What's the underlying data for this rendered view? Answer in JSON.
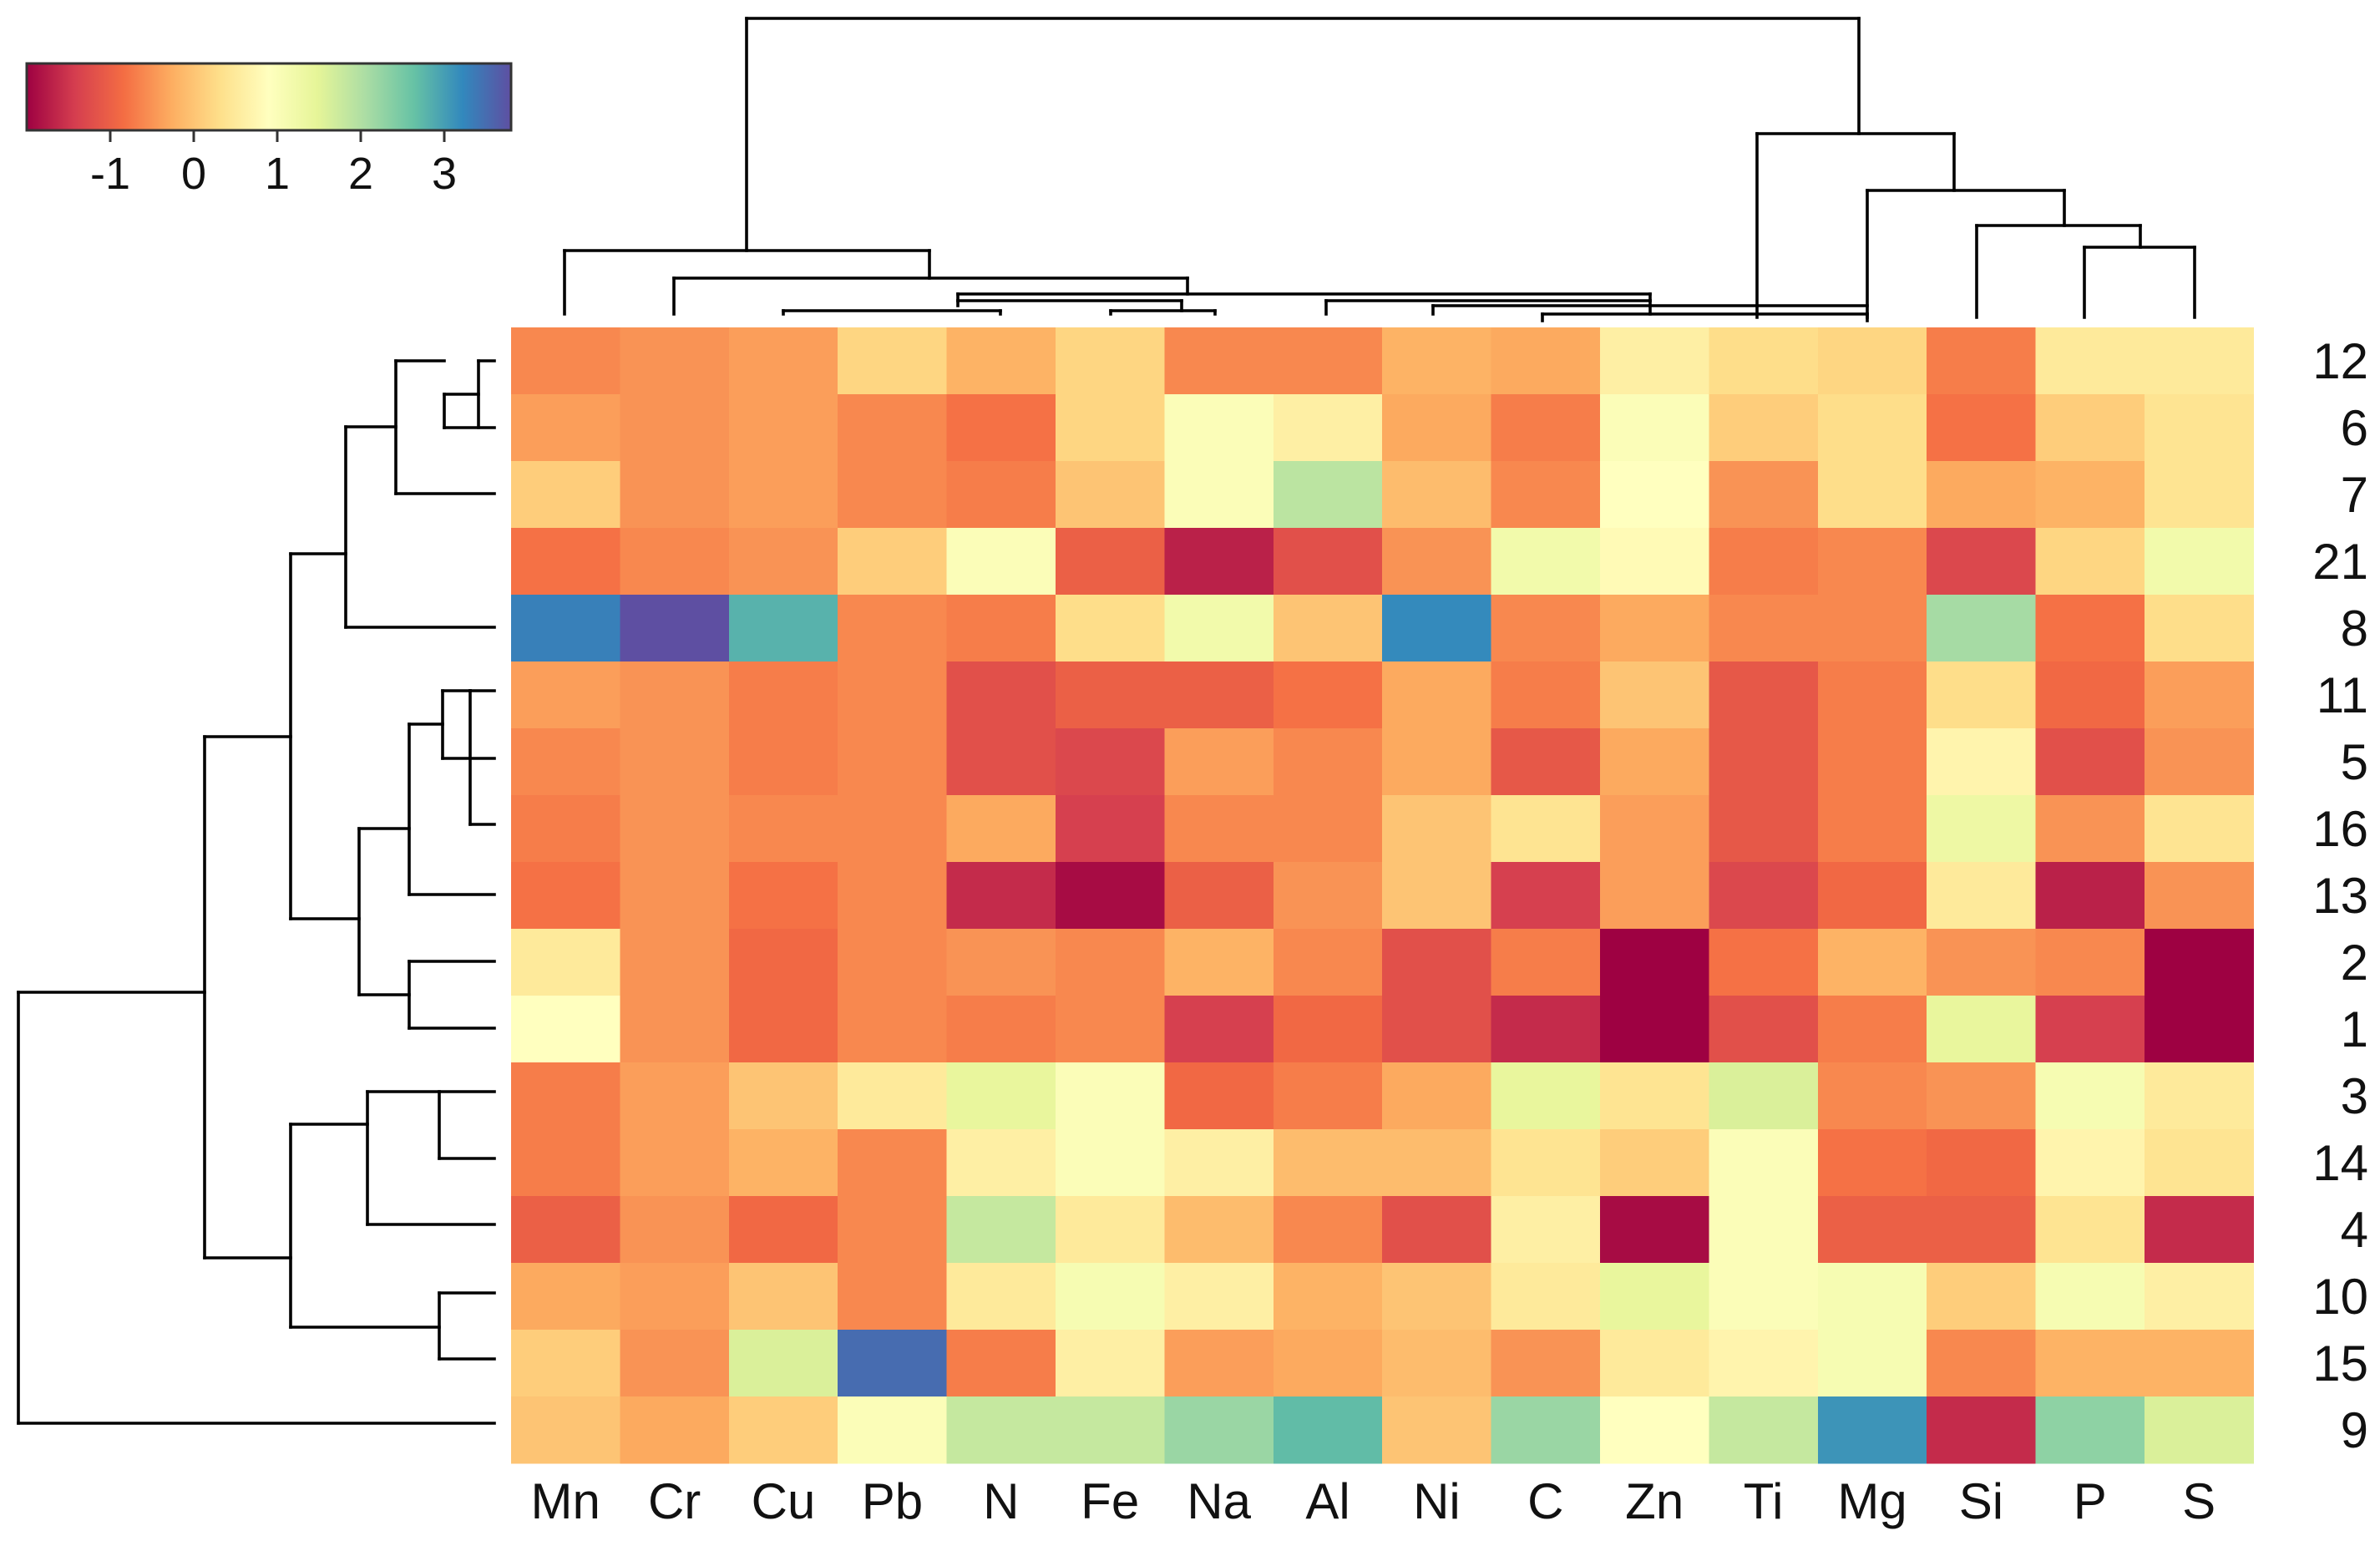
{
  "chart_data": {
    "type": "heatmap",
    "title": "",
    "columns": [
      "Mn",
      "Cr",
      "Cu",
      "Pb",
      "N",
      "Fe",
      "Na",
      "Al",
      "Ni",
      "C",
      "Zn",
      "Ti",
      "Mg",
      "Si",
      "P",
      "S"
    ],
    "rows": [
      "12",
      "6",
      "7",
      "21",
      "8",
      "11",
      "5",
      "16",
      "13",
      "2",
      "1",
      "3",
      "14",
      "4",
      "10",
      "15",
      "9"
    ],
    "values": [
      [
        -0.6,
        -0.5,
        -0.4,
        0.2,
        -0.2,
        0.2,
        -0.6,
        -0.6,
        -0.2,
        -0.3,
        0.6,
        0.3,
        0.2,
        -0.7,
        0.5,
        0.5
      ],
      [
        -0.4,
        -0.5,
        -0.4,
        -0.6,
        -0.8,
        0.2,
        1.0,
        0.6,
        -0.3,
        -0.7,
        1.0,
        0.1,
        0.3,
        -0.8,
        0.1,
        0.4
      ],
      [
        0.1,
        -0.5,
        -0.4,
        -0.6,
        -0.7,
        0.0,
        1.0,
        1.9,
        -0.1,
        -0.6,
        0.9,
        -0.5,
        0.3,
        -0.3,
        -0.2,
        0.4
      ],
      [
        -0.8,
        -0.6,
        -0.5,
        0.1,
        1.0,
        -1.0,
        -1.7,
        -1.2,
        -0.5,
        1.2,
        0.8,
        -0.7,
        -0.6,
        -1.3,
        0.2,
        1.2
      ],
      [
        3.3,
        3.8,
        2.8,
        -0.6,
        -0.7,
        0.3,
        1.2,
        0.0,
        3.2,
        -0.6,
        -0.3,
        -0.6,
        -0.6,
        2.1,
        -0.8,
        0.3
      ],
      [
        -0.4,
        -0.5,
        -0.7,
        -0.6,
        -1.2,
        -1.0,
        -1.0,
        -0.8,
        -0.3,
        -0.7,
        0.0,
        -1.1,
        -0.7,
        0.3,
        -0.9,
        -0.4
      ],
      [
        -0.6,
        -0.5,
        -0.7,
        -0.6,
        -1.2,
        -1.3,
        -0.4,
        -0.6,
        -0.3,
        -1.1,
        -0.3,
        -1.1,
        -0.7,
        0.7,
        -1.2,
        -0.5
      ],
      [
        -0.7,
        -0.5,
        -0.6,
        -0.6,
        -0.3,
        -1.4,
        -0.6,
        -0.6,
        0.0,
        0.4,
        -0.4,
        -1.1,
        -0.7,
        1.3,
        -0.5,
        0.4
      ],
      [
        -0.8,
        -0.5,
        -0.8,
        -0.6,
        -1.6,
        -1.9,
        -1.0,
        -0.5,
        0.0,
        -1.4,
        -0.4,
        -1.3,
        -0.9,
        0.5,
        -1.7,
        -0.5
      ],
      [
        0.5,
        -0.5,
        -0.9,
        -0.6,
        -0.5,
        -0.6,
        -0.2,
        -0.6,
        -1.2,
        -0.7,
        -2.2,
        -0.8,
        -0.2,
        -0.5,
        -0.6,
        -2.2
      ],
      [
        0.9,
        -0.5,
        -0.9,
        -0.6,
        -0.7,
        -0.6,
        -1.4,
        -0.9,
        -1.2,
        -1.6,
        -2.2,
        -1.2,
        -0.7,
        1.4,
        -1.4,
        -2.2
      ],
      [
        -0.7,
        -0.4,
        0.0,
        0.5,
        1.4,
        1.0,
        -0.9,
        -0.7,
        -0.3,
        1.4,
        0.4,
        1.6,
        -0.6,
        -0.5,
        1.1,
        0.5
      ],
      [
        -0.7,
        -0.4,
        -0.2,
        -0.6,
        0.6,
        1.0,
        0.6,
        -0.1,
        -0.1,
        0.4,
        0.1,
        1.0,
        -0.8,
        -0.9,
        0.7,
        0.4
      ],
      [
        -1.0,
        -0.5,
        -0.9,
        -0.6,
        1.8,
        0.5,
        -0.1,
        -0.6,
        -1.2,
        0.6,
        -1.9,
        1.0,
        -1.0,
        -1.0,
        0.4,
        -1.6
      ],
      [
        -0.3,
        -0.4,
        0.0,
        -0.6,
        0.5,
        1.1,
        0.6,
        -0.2,
        0.0,
        0.5,
        1.4,
        1.0,
        1.1,
        0.1,
        1.1,
        0.6
      ],
      [
        0.1,
        -0.5,
        1.6,
        3.5,
        -0.7,
        0.6,
        -0.4,
        -0.3,
        -0.1,
        -0.5,
        0.5,
        0.7,
        1.1,
        -0.6,
        -0.2,
        -0.2
      ],
      [
        0.0,
        -0.3,
        0.1,
        1.0,
        1.8,
        1.8,
        2.2,
        2.7,
        0.0,
        2.2,
        0.9,
        1.8,
        3.1,
        -1.6,
        2.3,
        1.6
      ]
    ],
    "colorbar": {
      "min": -2.0,
      "max": 3.8,
      "ticks": [
        -1,
        0,
        1,
        2,
        3
      ],
      "tick_labels": [
        "-1",
        "0",
        "1",
        "2",
        "3"
      ],
      "placement": "top-left",
      "palette": [
        "#9e0142",
        "#d53e4f",
        "#f46d43",
        "#fdae61",
        "#fee08b",
        "#ffffbf",
        "#e6f598",
        "#abdda4",
        "#66c2a5",
        "#3288bd",
        "#5e4fa2"
      ]
    },
    "column_order_note": "columns clustered by dendrogram on top",
    "row_order_note": "rows clustered by dendrogram on left"
  }
}
